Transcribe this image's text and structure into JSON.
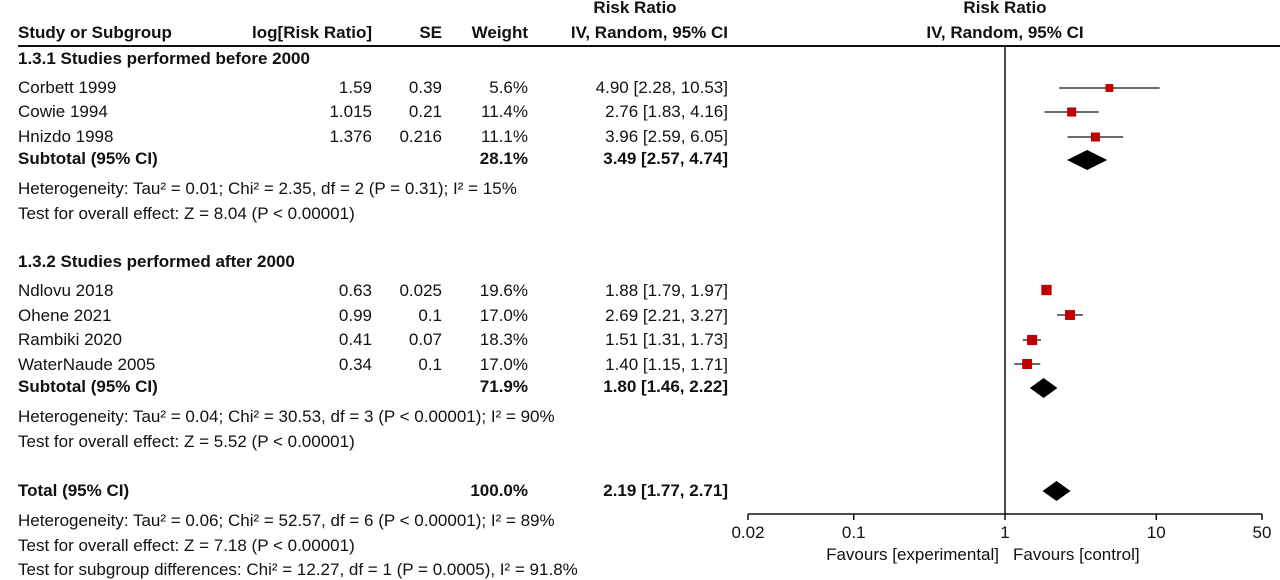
{
  "header": {
    "risk_ratio_left": "Risk Ratio",
    "risk_ratio_right": "Risk Ratio",
    "study_col": "Study or Subgroup",
    "logrr_col": "log[Risk Ratio]",
    "se_col": "SE",
    "weight_col": "Weight",
    "ci_col_left": "IV, Random, 95% CI",
    "ci_col_right": "IV, Random, 95% CI"
  },
  "groups": [
    {
      "title": "1.3.1 Studies performed before 2000",
      "studies": [
        {
          "name": "Corbett 1999",
          "logrr": "1.59",
          "se": "0.39",
          "weight": "5.6%",
          "ci": "4.90 [2.28, 10.53]"
        },
        {
          "name": "Cowie 1994",
          "logrr": "1.015",
          "se": "0.21",
          "weight": "11.4%",
          "ci": "2.76 [1.83, 4.16]"
        },
        {
          "name": "Hnizdo 1998",
          "logrr": "1.376",
          "se": "0.216",
          "weight": "11.1%",
          "ci": "3.96 [2.59, 6.05]"
        }
      ],
      "subtotal": {
        "label": "Subtotal (95% CI)",
        "weight": "28.1%",
        "ci": "3.49 [2.57, 4.74]"
      },
      "heterogeneity": "Heterogeneity: Tau² = 0.01; Chi² = 2.35, df = 2 (P = 0.31); I² = 15%",
      "overall": "Test for overall effect: Z = 8.04 (P < 0.00001)"
    },
    {
      "title": "1.3.2 Studies performed after 2000",
      "studies": [
        {
          "name": "Ndlovu 2018",
          "logrr": "0.63",
          "se": "0.025",
          "weight": "19.6%",
          "ci": "1.88 [1.79, 1.97]"
        },
        {
          "name": "Ohene 2021",
          "logrr": "0.99",
          "se": "0.1",
          "weight": "17.0%",
          "ci": "2.69 [2.21, 3.27]"
        },
        {
          "name": "Rambiki 2020",
          "logrr": "0.41",
          "se": "0.07",
          "weight": "18.3%",
          "ci": "1.51 [1.31, 1.73]"
        },
        {
          "name": "WaterNaude 2005",
          "logrr": "0.34",
          "se": "0.1",
          "weight": "17.0%",
          "ci": "1.40 [1.15, 1.71]"
        }
      ],
      "subtotal": {
        "label": "Subtotal (95% CI)",
        "weight": "71.9%",
        "ci": "1.80 [1.46, 2.22]"
      },
      "heterogeneity": "Heterogeneity: Tau² = 0.04; Chi² = 30.53, df = 3 (P < 0.00001); I² = 90%",
      "overall": "Test for overall effect: Z = 5.52 (P < 0.00001)"
    }
  ],
  "total": {
    "label": "Total (95% CI)",
    "weight": "100.0%",
    "ci": "2.19 [1.77, 2.71]",
    "heterogeneity": "Heterogeneity: Tau² = 0.06; Chi² = 52.57, df = 6 (P < 0.00001); I² = 89%",
    "overall": "Test for overall effect: Z = 7.18 (P < 0.00001)",
    "subgroup_diff": "Test for subgroup differences: Chi² = 12.27, df = 1 (P = 0.0005), I² = 91.8%"
  },
  "chart_data": {
    "type": "forest",
    "scale": "log",
    "xlim": [
      0.02,
      50
    ],
    "x_ticks": [
      "0.02",
      "0.1",
      "1",
      "10",
      "50"
    ],
    "favours_left": "Favours [experimental]",
    "favours_right": "Favours [control]",
    "marker_color": "#c00000",
    "studies": [
      {
        "name": "Corbett 1999",
        "rr": 4.9,
        "lo": 2.28,
        "hi": 10.53,
        "weight": 5.6
      },
      {
        "name": "Cowie 1994",
        "rr": 2.76,
        "lo": 1.83,
        "hi": 4.16,
        "weight": 11.4
      },
      {
        "name": "Hnizdo 1998",
        "rr": 3.96,
        "lo": 2.59,
        "hi": 6.05,
        "weight": 11.1
      },
      {
        "name": "Ndlovu 2018",
        "rr": 1.88,
        "lo": 1.79,
        "hi": 1.97,
        "weight": 19.6
      },
      {
        "name": "Ohene 2021",
        "rr": 2.69,
        "lo": 2.21,
        "hi": 3.27,
        "weight": 17.0
      },
      {
        "name": "Rambiki 2020",
        "rr": 1.51,
        "lo": 1.31,
        "hi": 1.73,
        "weight": 18.3
      },
      {
        "name": "WaterNaude 2005",
        "rr": 1.4,
        "lo": 1.15,
        "hi": 1.71,
        "weight": 17.0
      }
    ],
    "diamonds": [
      {
        "name": "Subtotal 1.3.1",
        "rr": 3.49,
        "lo": 2.57,
        "hi": 4.74
      },
      {
        "name": "Subtotal 1.3.2",
        "rr": 1.8,
        "lo": 1.46,
        "hi": 2.22
      },
      {
        "name": "Total",
        "rr": 2.19,
        "lo": 1.77,
        "hi": 2.71
      }
    ]
  }
}
